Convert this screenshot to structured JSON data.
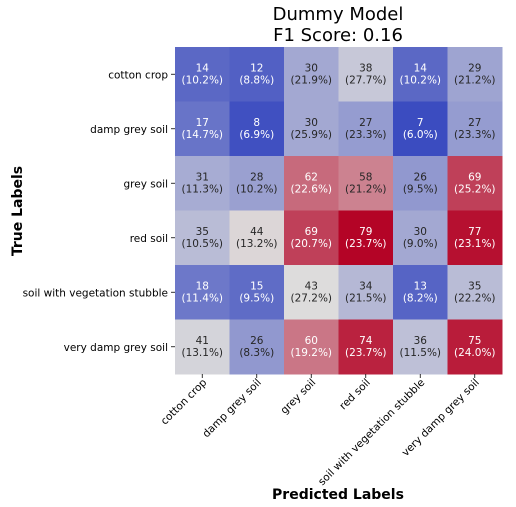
{
  "chart_data": {
    "type": "heatmap",
    "title": "Dummy Model\nF1 Score: 0.16",
    "xlabel": "Predicted Labels",
    "ylabel": "True Labels",
    "x_categories": [
      "cotton crop",
      "damp grey soil",
      "grey soil",
      "red soil",
      "soil with vegetation stubble",
      "very damp grey soil"
    ],
    "y_categories": [
      "cotton crop",
      "damp grey soil",
      "grey soil",
      "red soil",
      "soil with vegetation stubble",
      "very damp grey soil"
    ],
    "values": [
      [
        14,
        12,
        30,
        38,
        14,
        29
      ],
      [
        17,
        8,
        30,
        27,
        7,
        27
      ],
      [
        31,
        28,
        62,
        58,
        26,
        69
      ],
      [
        35,
        44,
        69,
        79,
        30,
        77
      ],
      [
        18,
        15,
        43,
        34,
        13,
        35
      ],
      [
        41,
        26,
        60,
        74,
        36,
        75
      ]
    ],
    "percent_labels": [
      [
        "(10.2%)",
        "(8.8%)",
        "(21.9%)",
        "(27.7%)",
        "(10.2%)",
        "(21.2%)"
      ],
      [
        "(14.7%)",
        "(6.9%)",
        "(25.9%)",
        "(23.3%)",
        "(6.0%)",
        "(23.3%)"
      ],
      [
        "(11.3%)",
        "(10.2%)",
        "(22.6%)",
        "(21.2%)",
        "(9.5%)",
        "(25.2%)"
      ],
      [
        "(10.5%)",
        "(13.2%)",
        "(20.7%)",
        "(23.7%)",
        "(9.0%)",
        "(23.1%)"
      ],
      [
        "(11.4%)",
        "(9.5%)",
        "(27.2%)",
        "(21.5%)",
        "(8.2%)",
        "(22.2%)"
      ],
      [
        "(13.1%)",
        "(8.3%)",
        "(19.2%)",
        "(23.7%)",
        "(11.5%)",
        "(24.0%)"
      ]
    ],
    "colormap": "coolwarm",
    "vmin": 7,
    "vmax": 79,
    "colors": [
      "#3b4cc0",
      "#dddcdc",
      "#b40426"
    ]
  }
}
